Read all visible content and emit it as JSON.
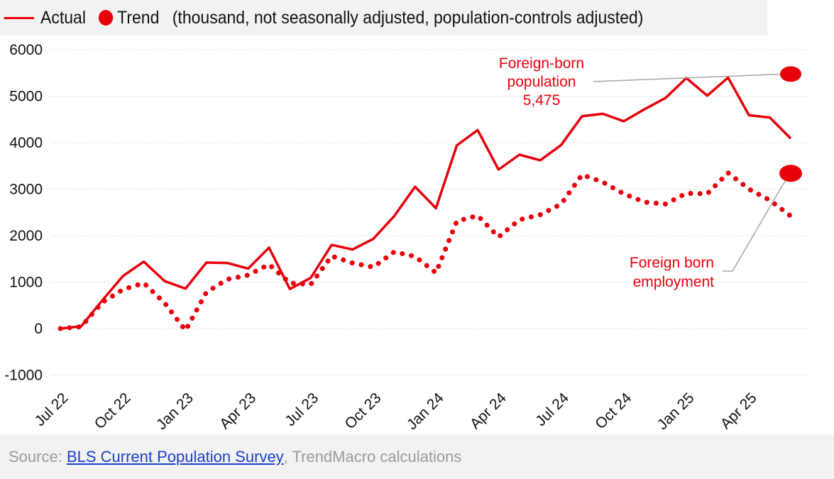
{
  "legend": {
    "actual_label": "Actual",
    "trend_label": "Trend",
    "note": "(thousand, not seasonally adjusted, population-controls adjusted)"
  },
  "colors": {
    "series": "#e8000b",
    "grid": "#d9d9d9",
    "leader": "#a6a6a6"
  },
  "chart_data": {
    "type": "line",
    "ylim": [
      -1000,
      6000
    ],
    "yticks": [
      -1000,
      0,
      1000,
      2000,
      3000,
      4000,
      5000,
      6000
    ],
    "x_tick_labels": [
      "Jul 22",
      "Oct 22",
      "Jan 23",
      "Apr 23",
      "Jul 23",
      "Oct 23",
      "Jan 24",
      "Apr 24",
      "Jul 24",
      "Oct 24",
      "Jan 25",
      "Apr 25"
    ],
    "x_tick_months": [
      0,
      3,
      6,
      9,
      12,
      15,
      18,
      21,
      24,
      27,
      30,
      33
    ],
    "x_months": [
      0,
      1,
      2,
      3,
      4,
      5,
      6,
      7,
      8,
      9,
      10,
      11,
      12,
      13,
      14,
      15,
      16,
      17,
      18,
      19,
      20,
      21,
      22,
      23,
      24,
      25,
      26,
      27,
      28,
      29,
      30,
      31,
      32,
      33,
      34,
      35
    ],
    "series": [
      {
        "name": "Foreign-born population",
        "style": "solid",
        "values": [
          0,
          50,
          600,
          1130,
          1440,
          1020,
          860,
          1420,
          1410,
          1290,
          1740,
          850,
          1090,
          1800,
          1700,
          1930,
          2420,
          3050,
          2590,
          3940,
          4270,
          3420,
          3740,
          3620,
          3950,
          4570,
          4620,
          4460,
          4720,
          4960,
          5390,
          5010,
          5400,
          4590,
          4540,
          4090
        ]
      },
      {
        "name": "Foreign born employment",
        "style": "dotted",
        "values": [
          0,
          40,
          560,
          840,
          980,
          550,
          -40,
          780,
          1060,
          1150,
          1380,
          980,
          950,
          1560,
          1410,
          1320,
          1650,
          1550,
          1200,
          2310,
          2430,
          1970,
          2340,
          2450,
          2680,
          3310,
          3150,
          2900,
          2720,
          2680,
          2910,
          2900,
          3350,
          3000,
          2760,
          2420
        ]
      }
    ],
    "annotations": [
      {
        "lines": [
          "Foreign-born",
          "population",
          "5,475"
        ],
        "value": 5475,
        "x_month": 35,
        "anchor": "population"
      },
      {
        "lines": [
          "Foreign born",
          "employment"
        ],
        "value": 3340,
        "x_month": 35,
        "anchor": "employment"
      }
    ]
  },
  "footer": {
    "prefix": "Source: ",
    "link_text": "BLS Current Population Survey",
    "suffix": ", TrendMacro calculations"
  }
}
